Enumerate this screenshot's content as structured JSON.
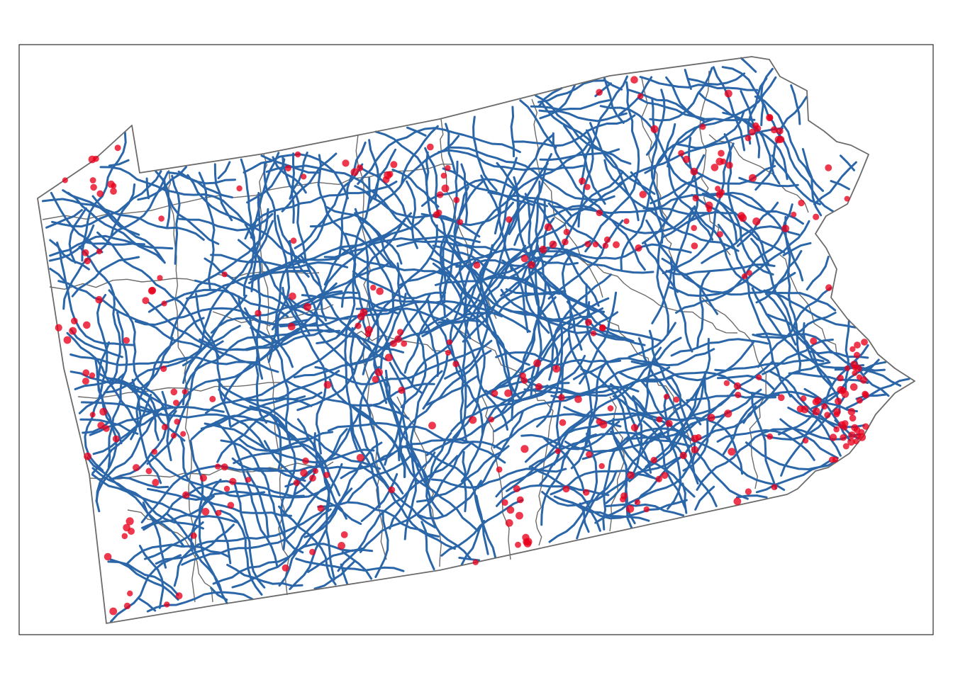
{
  "map": {
    "region": "Pennsylvania",
    "layers": [
      "state-outline",
      "county-boundaries",
      "roads",
      "places"
    ],
    "colors": {
      "background": "#ffffff",
      "frame": "#000000",
      "boundary": "#6b6b6b",
      "road": "#2b66a8",
      "place": "#e8001c"
    }
  }
}
